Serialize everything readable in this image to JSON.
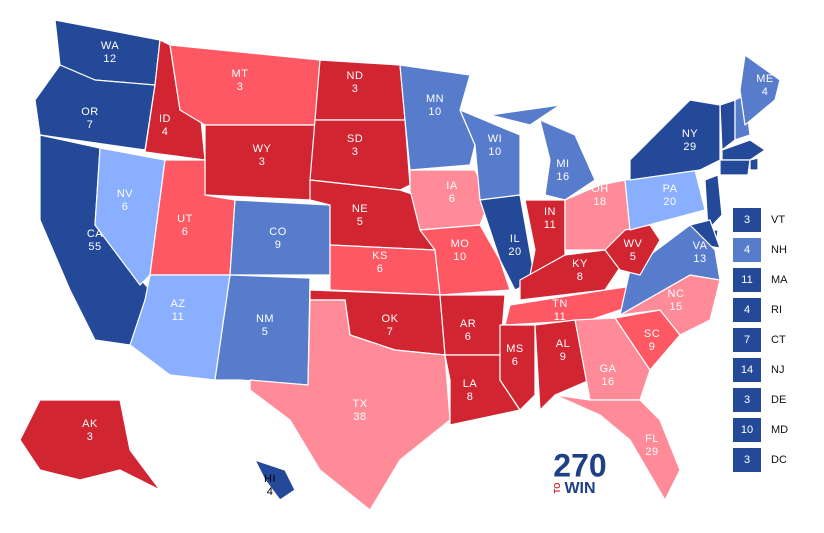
{
  "map": {
    "states": [
      {
        "abbr": "WA",
        "votes": 12,
        "color": "#244999"
      },
      {
        "abbr": "OR",
        "votes": 7,
        "color": "#244999"
      },
      {
        "abbr": "CA",
        "votes": 55,
        "color": "#244999"
      },
      {
        "abbr": "NV",
        "votes": 6,
        "color": "#8aafff"
      },
      {
        "abbr": "ID",
        "votes": 4,
        "color": "#d22532"
      },
      {
        "abbr": "MT",
        "votes": 3,
        "color": "#ff5865"
      },
      {
        "abbr": "WY",
        "votes": 3,
        "color": "#d22532"
      },
      {
        "abbr": "UT",
        "votes": 6,
        "color": "#ff5865"
      },
      {
        "abbr": "AZ",
        "votes": 11,
        "color": "#8aafff"
      },
      {
        "abbr": "CO",
        "votes": 9,
        "color": "#577ccc"
      },
      {
        "abbr": "NM",
        "votes": 5,
        "color": "#577ccc"
      },
      {
        "abbr": "ND",
        "votes": 3,
        "color": "#d22532"
      },
      {
        "abbr": "SD",
        "votes": 3,
        "color": "#d22532"
      },
      {
        "abbr": "NE",
        "votes": 5,
        "color": "#d22532"
      },
      {
        "abbr": "KS",
        "votes": 6,
        "color": "#ff5865"
      },
      {
        "abbr": "OK",
        "votes": 7,
        "color": "#d22532"
      },
      {
        "abbr": "TX",
        "votes": 38,
        "color": "#ff8b98"
      },
      {
        "abbr": "MN",
        "votes": 10,
        "color": "#577ccc"
      },
      {
        "abbr": "IA",
        "votes": 6,
        "color": "#ff8b98"
      },
      {
        "abbr": "MO",
        "votes": 10,
        "color": "#ff5865"
      },
      {
        "abbr": "AR",
        "votes": 6,
        "color": "#d22532"
      },
      {
        "abbr": "LA",
        "votes": 8,
        "color": "#d22532"
      },
      {
        "abbr": "WI",
        "votes": 10,
        "color": "#577ccc"
      },
      {
        "abbr": "IL",
        "votes": 20,
        "color": "#244999"
      },
      {
        "abbr": "MI",
        "votes": 16,
        "color": "#577ccc"
      },
      {
        "abbr": "IN",
        "votes": 11,
        "color": "#d22532"
      },
      {
        "abbr": "OH",
        "votes": 18,
        "color": "#ff8b98"
      },
      {
        "abbr": "KY",
        "votes": 8,
        "color": "#d22532"
      },
      {
        "abbr": "TN",
        "votes": 11,
        "color": "#ff5865"
      },
      {
        "abbr": "MS",
        "votes": 6,
        "color": "#d22532"
      },
      {
        "abbr": "AL",
        "votes": 9,
        "color": "#d22532"
      },
      {
        "abbr": "GA",
        "votes": 16,
        "color": "#ff8b98"
      },
      {
        "abbr": "FL",
        "votes": 29,
        "color": "#ff8b98"
      },
      {
        "abbr": "SC",
        "votes": 9,
        "color": "#ff5865"
      },
      {
        "abbr": "NC",
        "votes": 15,
        "color": "#ff8b98"
      },
      {
        "abbr": "VA",
        "votes": 13,
        "color": "#577ccc"
      },
      {
        "abbr": "WV",
        "votes": 5,
        "color": "#d22532"
      },
      {
        "abbr": "PA",
        "votes": 20,
        "color": "#8aafff"
      },
      {
        "abbr": "NY",
        "votes": 29,
        "color": "#244999"
      },
      {
        "abbr": "ME",
        "votes": 4,
        "color": "#577ccc"
      },
      {
        "abbr": "AK",
        "votes": 3,
        "color": "#d22532"
      },
      {
        "abbr": "HI",
        "votes": 4,
        "color": "#244999"
      }
    ],
    "small_states": [
      {
        "abbr": "VT",
        "votes": 3,
        "color": "#244999"
      },
      {
        "abbr": "NH",
        "votes": 4,
        "color": "#577ccc"
      },
      {
        "abbr": "MA",
        "votes": 11,
        "color": "#244999"
      },
      {
        "abbr": "RI",
        "votes": 4,
        "color": "#244999"
      },
      {
        "abbr": "CT",
        "votes": 7,
        "color": "#244999"
      },
      {
        "abbr": "NJ",
        "votes": 14,
        "color": "#244999"
      },
      {
        "abbr": "DE",
        "votes": 3,
        "color": "#244999"
      },
      {
        "abbr": "MD",
        "votes": 10,
        "color": "#244999"
      },
      {
        "abbr": "DC",
        "votes": 3,
        "color": "#244999"
      }
    ],
    "logo": {
      "number": "270",
      "to": "TO",
      "win": "WIN"
    }
  }
}
